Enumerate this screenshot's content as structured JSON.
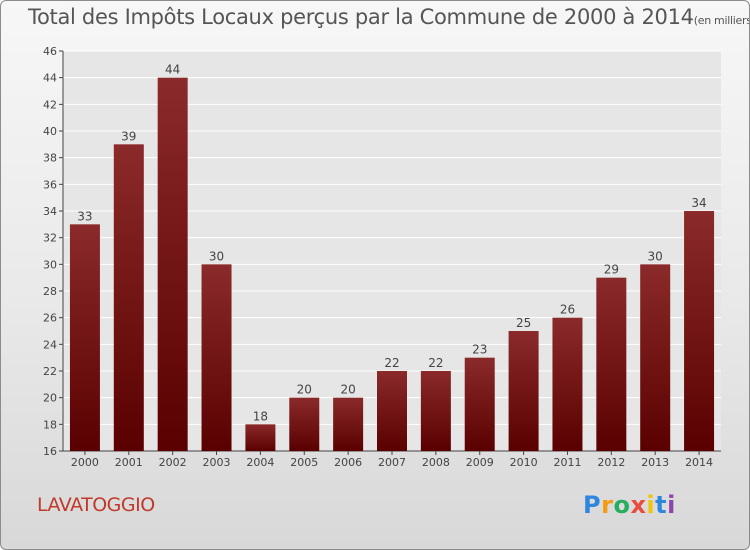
{
  "title": "Total des Impôts Locaux perçus par la Commune de 2000 à 2014",
  "title_unit": "(en milliers d'€)",
  "commune": "LAVATOGGIO",
  "logo": [
    "P",
    "r",
    "o",
    "x",
    "i",
    "t",
    "i"
  ],
  "colors": {
    "bar_top": "#8b2a2a",
    "bar_bottom": "#5a0000",
    "grid": "#ffffff",
    "commune_text": "#c0392b"
  },
  "chart_data": {
    "type": "bar",
    "categories": [
      "2000",
      "2001",
      "2002",
      "2003",
      "2004",
      "2005",
      "2006",
      "2007",
      "2008",
      "2009",
      "2010",
      "2011",
      "2012",
      "2013",
      "2014"
    ],
    "values": [
      33,
      39,
      44,
      30,
      18,
      20,
      20,
      22,
      22,
      23,
      25,
      26,
      29,
      30,
      34
    ],
    "ylim": [
      16,
      46
    ],
    "yticks": [
      16,
      18,
      20,
      22,
      24,
      26,
      28,
      30,
      32,
      34,
      36,
      38,
      40,
      42,
      44,
      46
    ],
    "grid": true,
    "xlabel": "",
    "ylabel": ""
  }
}
